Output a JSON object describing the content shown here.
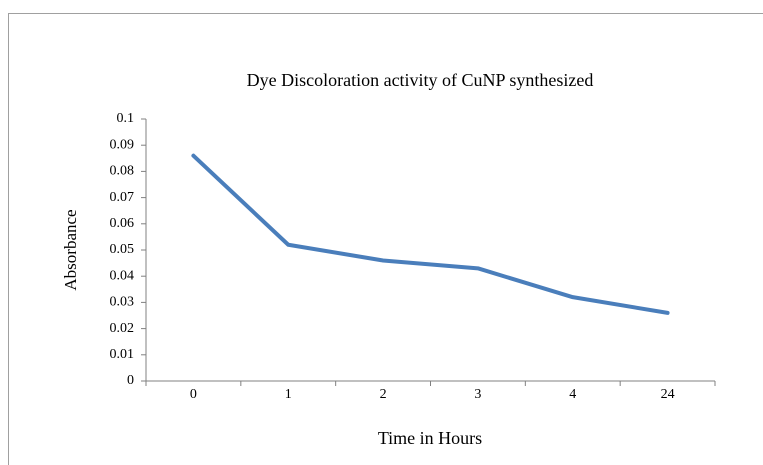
{
  "chart_data": {
    "type": "line",
    "title": "Dye Discoloration activity of CuNP synthesized",
    "x_label": "Time in Hours",
    "y_label": "Absorbance",
    "categories": [
      "0",
      "1",
      "2",
      "3",
      "4",
      "24"
    ],
    "series": [
      {
        "name": "Absorbance",
        "color": "#4a7ebb",
        "values": [
          0.086,
          0.052,
          0.046,
          0.043,
          0.032,
          0.026
        ]
      }
    ],
    "ylim": [
      0,
      0.1
    ],
    "yticks": [
      0,
      0.01,
      0.02,
      0.03,
      0.04,
      0.05,
      0.06,
      0.07,
      0.08,
      0.09,
      0.1
    ],
    "grid": false,
    "legend": false
  }
}
